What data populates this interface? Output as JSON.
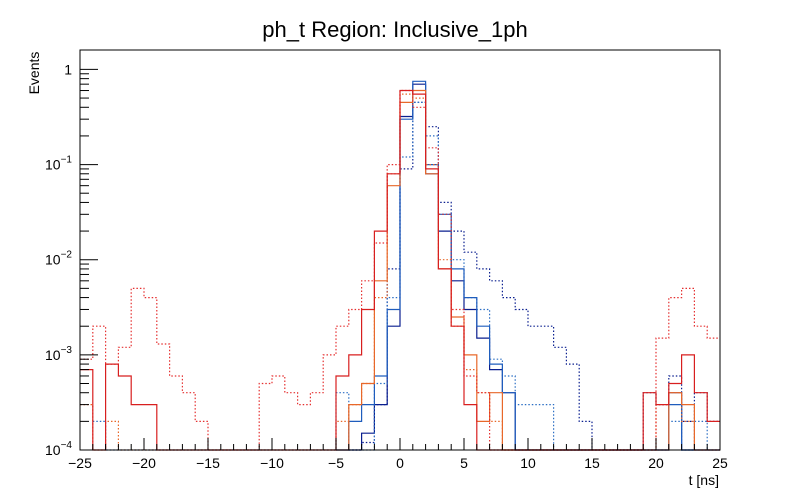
{
  "chart_data": {
    "type": "line",
    "title": "ph_t Region: Inclusive_1ph",
    "xlabel": "t [ns]",
    "ylabel": "Events",
    "xlim": [
      -25,
      25
    ],
    "ylim": [
      0.0001,
      1.6
    ],
    "yscale": "log",
    "grid": false,
    "bin_width": 1,
    "x_ticks": [
      -25,
      -20,
      -15,
      -10,
      -5,
      0,
      5,
      10,
      15,
      20,
      25
    ],
    "y_ticks": [
      {
        "value": 0.0001,
        "base": "10",
        "exp": "−4"
      },
      {
        "value": 0.001,
        "base": "10",
        "exp": "−3"
      },
      {
        "value": 0.01,
        "base": "10",
        "exp": "−2"
      },
      {
        "value": 0.1,
        "base": "10",
        "exp": "−1"
      },
      {
        "value": 1,
        "base": "1",
        "exp": ""
      }
    ],
    "series": [
      {
        "color": "#0a1f8f",
        "style": "dotted",
        "x": [
          -4,
          -3,
          -2,
          -1,
          0,
          1,
          2,
          3,
          4,
          5,
          6,
          7,
          8,
          9,
          10,
          11,
          12,
          13,
          14,
          15,
          16,
          17,
          18,
          19,
          20,
          21,
          22,
          23,
          24
        ],
        "y": [
          0.0001,
          0.00012,
          0.0003,
          0.008,
          0.09,
          0.45,
          0.25,
          0.04,
          0.02,
          0.012,
          0.008,
          0.006,
          0.004,
          0.003,
          0.002,
          0.002,
          0.0012,
          0.0008,
          0.0002,
          0.0001,
          0.0001,
          0.0001,
          0.0001,
          0.0004,
          0.0003,
          0.0006,
          0.0002,
          0.0004,
          0.0002
        ]
      },
      {
        "color": "#0a1f8f",
        "style": "solid",
        "x": [
          -5,
          -4,
          -3,
          -2,
          -1,
          0,
          1,
          2,
          3,
          4,
          5,
          6,
          7,
          8,
          9,
          10,
          11,
          12,
          13,
          14,
          15,
          16,
          17,
          18,
          19,
          20,
          21,
          22,
          23,
          24
        ],
        "y": [
          0.0001,
          0.0001,
          0.00015,
          0.0003,
          0.002,
          0.32,
          0.7,
          0.08,
          0.02,
          0.006,
          0.003,
          0.0015,
          0.0007,
          0.0004,
          0.0001,
          0.0001,
          0.0001,
          0.0001,
          0.0001,
          0.0001,
          0.0001,
          0.0001,
          0.0001,
          0.0001,
          0.0001,
          0.0001,
          0.0004,
          0.0001,
          0.0001,
          0.0001
        ]
      },
      {
        "color": "#2c6fc4",
        "style": "dotted",
        "x": [
          -24,
          -23,
          -22,
          -21,
          -20,
          -19,
          -18,
          -17,
          -16,
          -15,
          -14,
          -13,
          -12,
          -11,
          -10,
          -9,
          -8,
          -7,
          -6,
          -5,
          -4,
          -3,
          -2,
          -1,
          0,
          1,
          2,
          3,
          4,
          5,
          6,
          7,
          8,
          9,
          10,
          11,
          12,
          13,
          14,
          15,
          16,
          17,
          18,
          19,
          20,
          21,
          22,
          23,
          24
        ],
        "y": [
          0.0002,
          0.0001,
          0.0001,
          0.0001,
          0.0001,
          0.0001,
          0.0001,
          0.0001,
          0.0001,
          0.0001,
          0.0001,
          0.0001,
          0.0001,
          0.0001,
          0.0001,
          0.0001,
          0.0001,
          0.0001,
          0.0001,
          0.0004,
          0.0001,
          0.0001,
          0.0005,
          0.004,
          0.12,
          0.45,
          0.2,
          0.03,
          0.01,
          0.004,
          0.003,
          0.0009,
          0.0006,
          0.0003,
          0.0003,
          0.0003,
          0.0001,
          0.0001,
          0.0001,
          0.0001,
          0.0001,
          0.0001,
          0.0001,
          0.0001,
          0.0001,
          0.0002,
          0.0001,
          0.0002,
          0.0001
        ]
      },
      {
        "color": "#1f5dbd",
        "style": "solid",
        "x": [
          -5,
          -4,
          -3,
          -2,
          -1,
          0,
          1,
          2,
          3,
          4,
          5,
          6,
          7,
          8,
          9,
          10,
          11,
          12,
          13,
          14,
          15,
          16,
          17,
          18,
          19,
          20,
          21,
          22,
          23,
          24
        ],
        "y": [
          0.0001,
          0.0002,
          0.0003,
          0.0006,
          0.003,
          0.3,
          0.75,
          0.1,
          0.03,
          0.008,
          0.004,
          0.002,
          0.0008,
          0.0004,
          0.0001,
          0.0001,
          0.0001,
          0.0001,
          0.0001,
          0.0001,
          0.0001,
          0.0001,
          0.0001,
          0.0001,
          0.0001,
          0.0001,
          0.0003,
          0.0001,
          0.0001,
          0.0001
        ]
      },
      {
        "color": "#e8682a",
        "style": "dotted",
        "x": [
          -25,
          -24,
          -23,
          -22,
          -21,
          -20,
          -19,
          -18,
          -17,
          -16,
          -15,
          -14,
          -13,
          -12,
          -11,
          -10,
          -9,
          -8,
          -7,
          -6,
          -5,
          -4,
          -3,
          -2,
          -1,
          0,
          1,
          2,
          3,
          4,
          5,
          6,
          7,
          8,
          9,
          10,
          11,
          12,
          13,
          14,
          15,
          16,
          17,
          18,
          19,
          20,
          21,
          22,
          23,
          24
        ],
        "y": [
          0.0003,
          0.0001,
          0.0002,
          0.0001,
          0.0001,
          0.0001,
          0.0001,
          0.0001,
          0.0001,
          0.0001,
          0.0001,
          0.0001,
          0.0001,
          0.0001,
          0.0001,
          0.0001,
          0.0001,
          0.0001,
          0.0001,
          0.0001,
          0.0002,
          0.0003,
          0.0005,
          0.004,
          0.08,
          0.55,
          0.5,
          0.1,
          0.01,
          0.002,
          0.0007,
          0.0004,
          0.0002,
          0.0001,
          0.0001,
          0.0001,
          0.0001,
          0.0001,
          0.0001,
          0.0001,
          0.0001,
          0.0001,
          0.0001,
          0.0001,
          0.0001,
          0.0003,
          0.0004,
          0.0002,
          0.0001,
          0.0001
        ]
      },
      {
        "color": "#e8682a",
        "style": "solid",
        "x": [
          -5,
          -4,
          -3,
          -2,
          -1,
          0,
          1,
          2,
          3,
          4,
          5,
          6,
          7,
          8,
          9,
          10,
          11,
          12,
          13,
          14,
          15,
          16,
          17,
          18,
          19,
          20,
          21,
          22,
          23,
          24
        ],
        "y": [
          0.0001,
          0.0003,
          0.0005,
          0.006,
          0.06,
          0.45,
          0.6,
          0.08,
          0.008,
          0.0025,
          0.001,
          0.0002,
          0.0004,
          0.0001,
          0.0001,
          0.0001,
          0.0001,
          0.0001,
          0.0001,
          0.0001,
          0.0001,
          0.0001,
          0.0001,
          0.0001,
          0.0001,
          0.0001,
          0.0004,
          0.0003,
          0.0001,
          0.0001
        ]
      },
      {
        "color": "#e53030",
        "style": "dotted",
        "x": [
          -25,
          -24,
          -23,
          -22,
          -21,
          -20,
          -19,
          -18,
          -17,
          -16,
          -15,
          -14,
          -13,
          -12,
          -11,
          -10,
          -9,
          -8,
          -7,
          -6,
          -5,
          -4,
          -3,
          -2,
          -1,
          0,
          1,
          2,
          3,
          4,
          5,
          6,
          7,
          8,
          9,
          10,
          11,
          12,
          13,
          14,
          15,
          16,
          17,
          18,
          19,
          20,
          21,
          22,
          23,
          24
        ],
        "y": [
          0.0009,
          0.002,
          0.0008,
          0.0012,
          0.005,
          0.004,
          0.0013,
          0.0006,
          0.0004,
          0.0002,
          0.0001,
          0.0001,
          0.0001,
          0.0001,
          0.0005,
          0.0006,
          0.0004,
          0.0003,
          0.0004,
          0.001,
          0.002,
          0.003,
          0.006,
          0.015,
          0.1,
          0.6,
          0.4,
          0.15,
          0.03,
          0.003,
          0.0006,
          0.0004,
          0.0001,
          0.0001,
          0.0001,
          0.0001,
          0.0001,
          0.0001,
          0.0001,
          0.0001,
          0.0001,
          0.0001,
          0.0001,
          0.0001,
          0.0001,
          0.0015,
          0.004,
          0.005,
          0.002,
          0.0015
        ]
      },
      {
        "color": "#d81f1f",
        "style": "solid",
        "x": [
          -25,
          -24,
          -23,
          -22,
          -21,
          -20,
          -19,
          -18,
          -17,
          -16,
          -15,
          -14,
          -13,
          -12,
          -11,
          -10,
          -9,
          -8,
          -7,
          -6,
          -5,
          -4,
          -3,
          -2,
          -1,
          0,
          1,
          2,
          3,
          4,
          5,
          6,
          7,
          8,
          9,
          10,
          11,
          12,
          13,
          14,
          15,
          16,
          17,
          18,
          19,
          20,
          21,
          22,
          23,
          24
        ],
        "y": [
          0.0007,
          0.0001,
          0.0008,
          0.0006,
          0.0003,
          0.0003,
          0.0001,
          0.0001,
          0.0001,
          0.0001,
          0.0001,
          0.0001,
          0.0001,
          0.0001,
          0.0001,
          0.0001,
          0.0001,
          0.0001,
          0.0001,
          0.0001,
          0.0006,
          0.001,
          0.003,
          0.02,
          0.08,
          0.6,
          0.55,
          0.09,
          0.008,
          0.002,
          0.0003,
          0.0001,
          0.0001,
          0.0001,
          0.0001,
          0.0001,
          0.0001,
          0.0001,
          0.0001,
          0.0001,
          0.0001,
          0.0001,
          0.0001,
          0.0001,
          0.0004,
          0.0003,
          0.0005,
          0.001,
          0.0004,
          0.0002
        ]
      }
    ]
  }
}
